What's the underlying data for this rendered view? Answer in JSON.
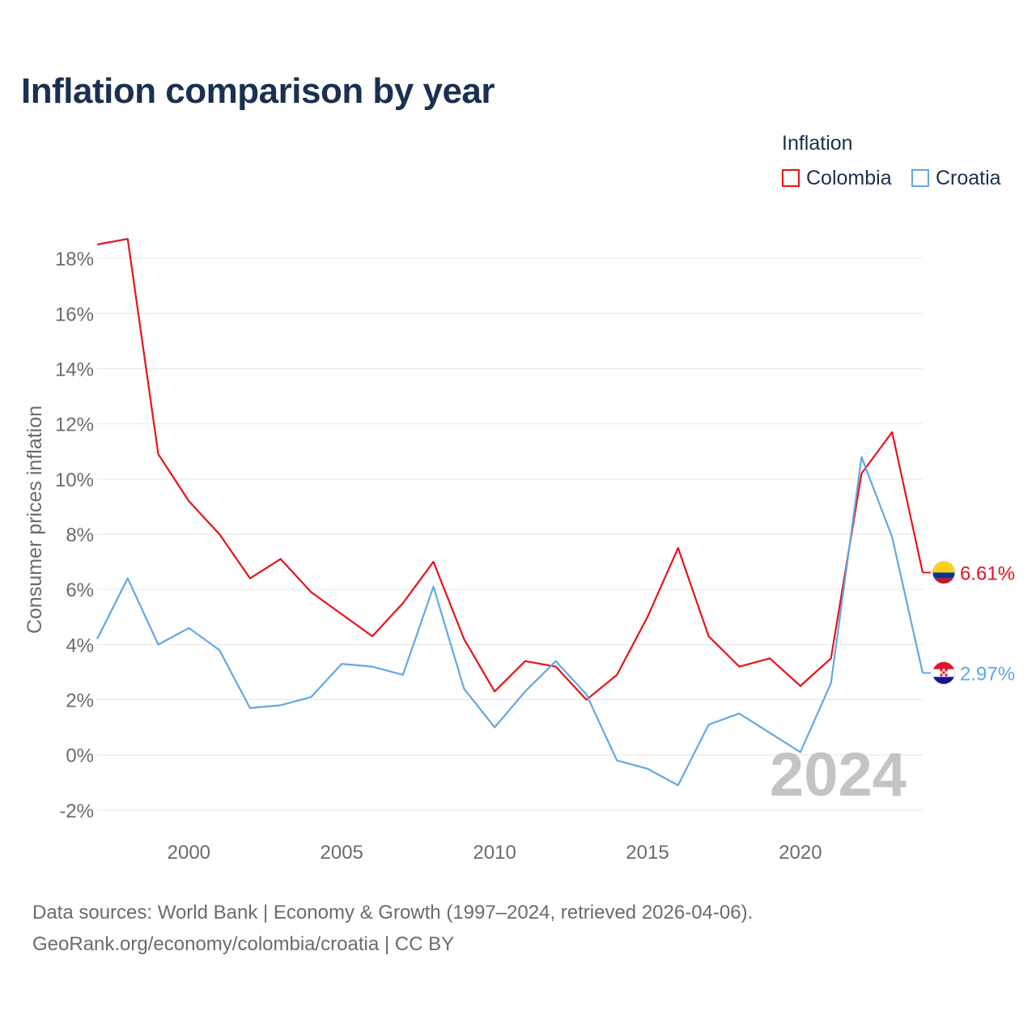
{
  "title": "Inflation comparison by year",
  "legend": {
    "title": "Inflation",
    "items": [
      {
        "label": "Colombia",
        "color": "#e8121b"
      },
      {
        "label": "Croatia",
        "color": "#62a8e5"
      }
    ]
  },
  "footer": {
    "line1": "Data sources: World Bank | Economy & Growth (1997–2024, retrieved 2026-04-06).",
    "line2": "GeoRank.org/economy/colombia/croatia | CC BY"
  },
  "chart_data": {
    "type": "line",
    "title": "Inflation comparison by year",
    "xlabel": "",
    "ylabel": "Consumer prices inflation",
    "xlim": [
      1997,
      2024
    ],
    "ylim": [
      -3,
      19
    ],
    "yticks": [
      -2,
      0,
      2,
      4,
      6,
      8,
      10,
      12,
      14,
      16,
      18
    ],
    "ytick_labels": [
      "-2%",
      "0%",
      "2%",
      "4%",
      "6%",
      "8%",
      "10%",
      "12%",
      "14%",
      "16%",
      "18%"
    ],
    "xticks": [
      2000,
      2005,
      2010,
      2015,
      2020
    ],
    "xtick_labels": [
      "2000",
      "2005",
      "2010",
      "2015",
      "2020"
    ],
    "grid": true,
    "year_watermark": "2024",
    "x": [
      1997,
      1998,
      1999,
      2000,
      2001,
      2002,
      2003,
      2004,
      2005,
      2006,
      2007,
      2008,
      2009,
      2010,
      2011,
      2012,
      2013,
      2014,
      2015,
      2016,
      2017,
      2018,
      2019,
      2020,
      2021,
      2022,
      2023,
      2024
    ],
    "series": [
      {
        "name": "Colombia",
        "color": "#e8121b",
        "end_label": "6.61%",
        "values": [
          18.5,
          18.7,
          10.9,
          9.2,
          8.0,
          6.4,
          7.1,
          5.9,
          5.1,
          4.3,
          5.5,
          7.0,
          4.2,
          2.3,
          3.4,
          3.2,
          2.0,
          2.9,
          5.0,
          7.5,
          4.3,
          3.2,
          3.5,
          2.5,
          3.5,
          10.2,
          11.7,
          6.61
        ]
      },
      {
        "name": "Croatia",
        "color": "#62a8e5",
        "end_label": "2.97%",
        "values": [
          4.2,
          6.4,
          4.0,
          4.6,
          3.8,
          1.7,
          1.8,
          2.1,
          3.3,
          3.2,
          2.9,
          6.1,
          2.4,
          1.0,
          2.3,
          3.4,
          2.2,
          -0.2,
          -0.5,
          -1.1,
          1.1,
          1.5,
          0.8,
          0.1,
          2.6,
          10.8,
          7.9,
          2.97
        ]
      }
    ]
  }
}
